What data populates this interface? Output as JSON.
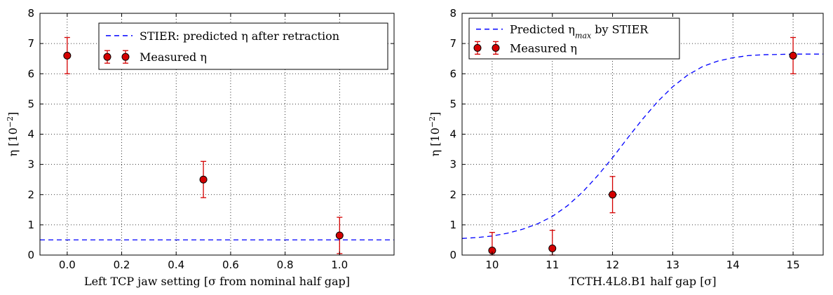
{
  "chart_data": [
    {
      "type": "scatter",
      "xlabel": "Left TCP jaw setting [σ from nominal half gap]",
      "ylabel": {
        "main": "η [10",
        "sup": "−2",
        "tail": "]"
      },
      "xlim": [
        -0.1,
        1.2
      ],
      "ylim": [
        0,
        8
      ],
      "xticks": [
        "0.0",
        "0.2",
        "0.4",
        "0.6",
        "0.8",
        "1.0"
      ],
      "xtick_values": [
        0.0,
        0.2,
        0.4,
        0.6,
        0.8,
        1.0
      ],
      "yticks": [
        "0",
        "1",
        "2",
        "3",
        "4",
        "5",
        "6",
        "7",
        "8"
      ],
      "grid": true,
      "legend_position": "top-right",
      "series": [
        {
          "name": "STIER: predicted η after retraction",
          "kind": "line",
          "style": "dashed",
          "color": "#0000ff",
          "x": [
            -0.1,
            1.2
          ],
          "y": [
            0.5,
            0.5
          ]
        },
        {
          "name": "Measured η",
          "kind": "errorbar",
          "color": "#d40000",
          "x": [
            0.0,
            0.5,
            1.0
          ],
          "y": [
            6.6,
            2.5,
            0.65
          ],
          "yerr": [
            0.6,
            0.6,
            0.6
          ]
        }
      ]
    },
    {
      "type": "scatter",
      "xlabel": "TCTH.4L8.B1 half gap [σ]",
      "ylabel": {
        "main": "η [10",
        "sup": "−2",
        "tail": "]"
      },
      "xlim": [
        9.5,
        15.5
      ],
      "ylim": [
        0,
        8
      ],
      "xticks": [
        "10",
        "11",
        "12",
        "13",
        "14",
        "15"
      ],
      "xtick_values": [
        10,
        11,
        12,
        13,
        14,
        15
      ],
      "yticks": [
        "0",
        "1",
        "2",
        "3",
        "4",
        "5",
        "6",
        "7",
        "8"
      ],
      "grid": true,
      "legend_position": "top-left",
      "series": [
        {
          "name": "Predicted η_max by STIER",
          "name_main": "Predicted η",
          "name_sub": "max",
          "name_tail": " by STIER",
          "kind": "line",
          "style": "dashed",
          "color": "#0000ff",
          "x": [
            9.5,
            9.75,
            10.0,
            10.25,
            10.5,
            10.75,
            11.0,
            11.25,
            11.5,
            11.75,
            12.0,
            12.25,
            12.5,
            12.75,
            13.0,
            13.25,
            13.5,
            13.75,
            14.0,
            14.25,
            14.5,
            14.75,
            15.0,
            15.25,
            15.5
          ],
          "y": [
            0.55,
            0.58,
            0.63,
            0.72,
            0.85,
            1.03,
            1.28,
            1.63,
            2.08,
            2.62,
            3.22,
            3.87,
            4.5,
            5.08,
            5.57,
            5.96,
            6.24,
            6.42,
            6.53,
            6.6,
            6.63,
            6.64,
            6.65,
            6.65,
            6.65
          ]
        },
        {
          "name": "Measured η",
          "kind": "errorbar",
          "color": "#d40000",
          "x": [
            10,
            11,
            12,
            15
          ],
          "y": [
            0.15,
            0.22,
            2.0,
            6.6
          ],
          "yerr": [
            0.6,
            0.6,
            0.6,
            0.6
          ]
        }
      ]
    }
  ]
}
